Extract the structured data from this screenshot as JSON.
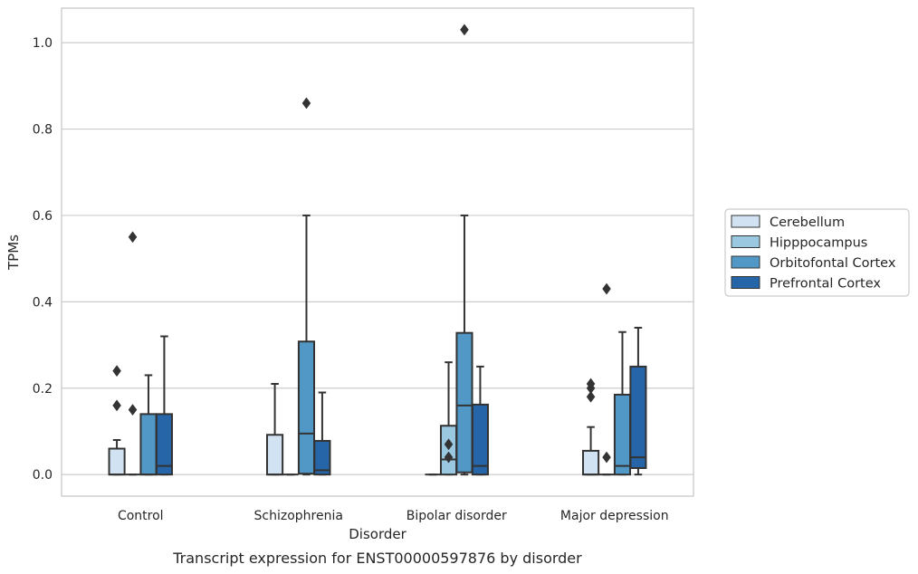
{
  "chart_data": {
    "type": "box",
    "caption": "Transcript expression for ENST00000597876 by disorder",
    "xlabel": "Disorder",
    "ylabel": "TPMs",
    "ylim": [
      -0.05,
      1.08
    ],
    "yticks": [
      0.0,
      0.2,
      0.4,
      0.6,
      0.8,
      1.0
    ],
    "ytick_labels": [
      "0.0",
      "0.2",
      "0.4",
      "0.6",
      "0.8",
      "1.0"
    ],
    "grid": "horizontal",
    "legend_position": "right",
    "categories": [
      "Control",
      "Schizophrenia",
      "Bipolar disorder",
      "Major depression"
    ],
    "series": [
      {
        "name": "Cerebellum",
        "color": "#d1e2f2",
        "boxes": [
          {
            "whisker_low": 0.0,
            "q1": 0.0,
            "median": 0.0,
            "q3": 0.06,
            "whisker_high": 0.08,
            "outliers": [
              0.16,
              0.24
            ]
          },
          {
            "whisker_low": 0.0,
            "q1": 0.0,
            "median": 0.0,
            "q3": 0.092,
            "whisker_high": 0.21,
            "outliers": []
          },
          {
            "whisker_low": 0.0,
            "q1": 0.0,
            "median": 0.0,
            "q3": 0.0,
            "whisker_high": 0.0,
            "outliers": []
          },
          {
            "whisker_low": 0.0,
            "q1": 0.0,
            "median": 0.0,
            "q3": 0.055,
            "whisker_high": 0.11,
            "outliers": [
              0.18,
              0.2,
              0.21
            ]
          }
        ]
      },
      {
        "name": "Hipppocampus",
        "color": "#9ac8e0",
        "boxes": [
          {
            "whisker_low": 0.0,
            "q1": 0.0,
            "median": 0.0,
            "q3": 0.0,
            "whisker_high": 0.0,
            "outliers": [
              0.15,
              0.55
            ]
          },
          {
            "whisker_low": 0.0,
            "q1": 0.0,
            "median": 0.0,
            "q3": 0.0,
            "whisker_high": 0.0,
            "outliers": []
          },
          {
            "whisker_low": 0.0,
            "q1": 0.0,
            "median": 0.035,
            "q3": 0.113,
            "whisker_high": 0.26,
            "outliers": [
              0.04,
              0.07
            ]
          },
          {
            "whisker_low": 0.0,
            "q1": 0.0,
            "median": 0.0,
            "q3": 0.0,
            "whisker_high": 0.0,
            "outliers": [
              0.04,
              0.43
            ]
          }
        ]
      },
      {
        "name": "Orbitofontal Cortex",
        "color": "#5198c6",
        "boxes": [
          {
            "whisker_low": 0.0,
            "q1": 0.0,
            "median": 0.0,
            "q3": 0.14,
            "whisker_high": 0.23,
            "outliers": []
          },
          {
            "whisker_low": 0.0,
            "q1": 0.002,
            "median": 0.095,
            "q3": 0.308,
            "whisker_high": 0.6,
            "outliers": [
              0.86
            ]
          },
          {
            "whisker_low": 0.0,
            "q1": 0.005,
            "median": 0.16,
            "q3": 0.328,
            "whisker_high": 0.6,
            "outliers": [
              1.03
            ]
          },
          {
            "whisker_low": 0.0,
            "q1": 0.0,
            "median": 0.02,
            "q3": 0.185,
            "whisker_high": 0.33,
            "outliers": []
          }
        ]
      },
      {
        "name": "Prefrontal Cortex",
        "color": "#2565a8",
        "boxes": [
          {
            "whisker_low": 0.0,
            "q1": 0.0,
            "median": 0.02,
            "q3": 0.14,
            "whisker_high": 0.32,
            "outliers": []
          },
          {
            "whisker_low": 0.0,
            "q1": 0.0,
            "median": 0.01,
            "q3": 0.078,
            "whisker_high": 0.19,
            "outliers": []
          },
          {
            "whisker_low": 0.0,
            "q1": 0.0,
            "median": 0.02,
            "q3": 0.162,
            "whisker_high": 0.25,
            "outliers": []
          },
          {
            "whisker_low": 0.0,
            "q1": 0.015,
            "median": 0.04,
            "q3": 0.25,
            "whisker_high": 0.34,
            "outliers": []
          }
        ]
      }
    ]
  }
}
